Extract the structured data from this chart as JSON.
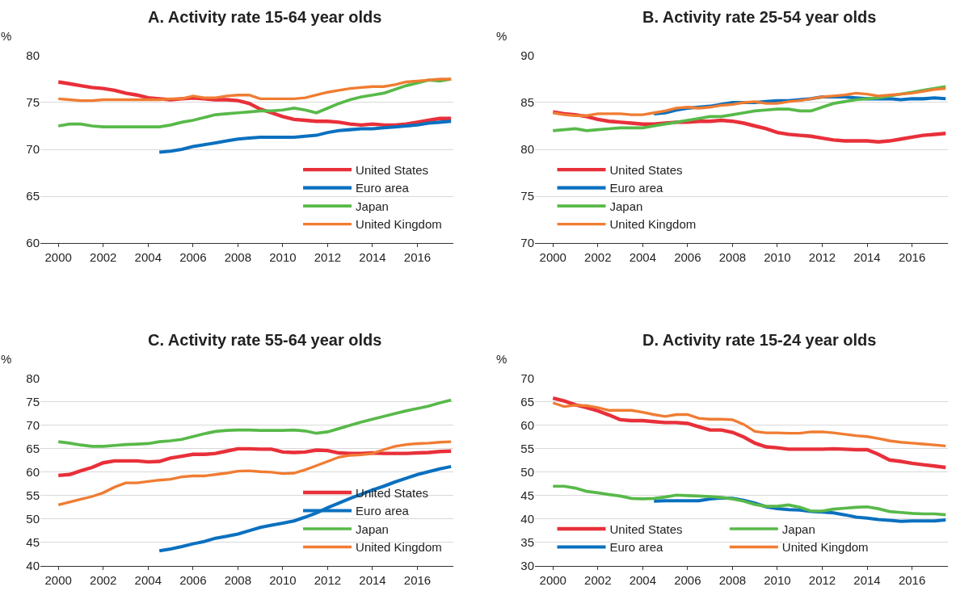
{
  "chart_data": [
    {
      "type": "line",
      "title": "A. Activity rate 15-64 year olds",
      "ylabel": "%",
      "x": [
        2000,
        2000.5,
        2001,
        2001.5,
        2002,
        2002.5,
        2003,
        2003.5,
        2004,
        2004.5,
        2005,
        2005.5,
        2006,
        2006.5,
        2007,
        2007.5,
        2008,
        2008.5,
        2009,
        2009.5,
        2010,
        2010.5,
        2011,
        2011.5,
        2012,
        2012.5,
        2013,
        2013.5,
        2014,
        2014.5,
        2015,
        2015.5,
        2016,
        2016.5,
        2017,
        2017.5
      ],
      "xlim": [
        1999.2,
        2017.6
      ],
      "xticks": [
        2000,
        2002,
        2004,
        2006,
        2008,
        2010,
        2012,
        2014,
        2016
      ],
      "ylim": [
        60,
        80
      ],
      "yticks": [
        60,
        65,
        70,
        75,
        80
      ],
      "grid": "y",
      "legend": "bottom right",
      "series": [
        {
          "name": "United States",
          "color": "#e8303a",
          "values": [
            77.2,
            77.0,
            76.8,
            76.6,
            76.5,
            76.3,
            76.0,
            75.8,
            75.5,
            75.4,
            75.3,
            75.4,
            75.5,
            75.4,
            75.3,
            75.3,
            75.2,
            74.9,
            74.3,
            73.9,
            73.5,
            73.2,
            73.1,
            73.0,
            73.0,
            72.9,
            72.7,
            72.6,
            72.7,
            72.6,
            72.6,
            72.7,
            72.9,
            73.1,
            73.3,
            73.3
          ]
        },
        {
          "name": "Euro area",
          "color": "#0a70bf",
          "values": [
            null,
            null,
            null,
            null,
            null,
            null,
            null,
            null,
            null,
            69.7,
            69.8,
            70.0,
            70.3,
            70.5,
            70.7,
            70.9,
            71.1,
            71.2,
            71.3,
            71.3,
            71.3,
            71.3,
            71.4,
            71.5,
            71.8,
            72.0,
            72.1,
            72.2,
            72.2,
            72.3,
            72.4,
            72.5,
            72.6,
            72.8,
            72.9,
            73.0
          ]
        },
        {
          "name": "Japan",
          "color": "#58b949",
          "values": [
            72.5,
            72.7,
            72.7,
            72.5,
            72.4,
            72.4,
            72.4,
            72.4,
            72.4,
            72.4,
            72.6,
            72.9,
            73.1,
            73.4,
            73.7,
            73.8,
            73.9,
            74.0,
            74.1,
            74.1,
            74.2,
            74.4,
            74.2,
            73.9,
            74.4,
            74.9,
            75.3,
            75.6,
            75.8,
            76.0,
            76.4,
            76.8,
            77.1,
            77.4,
            77.3,
            77.5
          ]
        },
        {
          "name": "United Kingdom",
          "color": "#f07c32",
          "values": [
            75.4,
            75.3,
            75.2,
            75.2,
            75.3,
            75.3,
            75.3,
            75.3,
            75.3,
            75.3,
            75.4,
            75.4,
            75.7,
            75.5,
            75.5,
            75.7,
            75.8,
            75.8,
            75.4,
            75.4,
            75.4,
            75.4,
            75.5,
            75.8,
            76.1,
            76.3,
            76.5,
            76.6,
            76.7,
            76.7,
            76.9,
            77.2,
            77.3,
            77.4,
            77.5,
            77.5
          ]
        }
      ]
    },
    {
      "type": "line",
      "title": "B. Activity rate 25-54 year olds",
      "ylabel": "%",
      "x": [
        2000,
        2000.5,
        2001,
        2001.5,
        2002,
        2002.5,
        2003,
        2003.5,
        2004,
        2004.5,
        2005,
        2005.5,
        2006,
        2006.5,
        2007,
        2007.5,
        2008,
        2008.5,
        2009,
        2009.5,
        2010,
        2010.5,
        2011,
        2011.5,
        2012,
        2012.5,
        2013,
        2013.5,
        2014,
        2014.5,
        2015,
        2015.5,
        2016,
        2016.5,
        2017,
        2017.5
      ],
      "xlim": [
        1999.2,
        2017.6
      ],
      "xticks": [
        2000,
        2002,
        2004,
        2006,
        2008,
        2010,
        2012,
        2014,
        2016
      ],
      "ylim": [
        70,
        90
      ],
      "yticks": [
        70,
        75,
        80,
        85,
        90
      ],
      "grid": "y",
      "legend": "bottom left",
      "series": [
        {
          "name": "United States",
          "color": "#e8303a",
          "values": [
            84.0,
            83.8,
            83.7,
            83.5,
            83.2,
            83.0,
            82.9,
            82.8,
            82.7,
            82.7,
            82.8,
            82.9,
            82.9,
            83.0,
            83.0,
            83.1,
            83.0,
            82.8,
            82.5,
            82.2,
            81.8,
            81.6,
            81.5,
            81.4,
            81.2,
            81.0,
            80.9,
            80.9,
            80.9,
            80.8,
            80.9,
            81.1,
            81.3,
            81.5,
            81.6,
            81.7
          ]
        },
        {
          "name": "Euro area",
          "color": "#0a70bf",
          "values": [
            null,
            null,
            null,
            null,
            null,
            null,
            null,
            null,
            null,
            83.8,
            83.9,
            84.2,
            84.4,
            84.5,
            84.6,
            84.8,
            85.0,
            85.0,
            85.0,
            85.1,
            85.2,
            85.2,
            85.3,
            85.4,
            85.6,
            85.6,
            85.6,
            85.5,
            85.4,
            85.4,
            85.4,
            85.3,
            85.4,
            85.4,
            85.5,
            85.4
          ]
        },
        {
          "name": "Japan",
          "color": "#58b949",
          "values": [
            82.0,
            82.1,
            82.2,
            82.0,
            82.1,
            82.2,
            82.3,
            82.3,
            82.3,
            82.5,
            82.7,
            82.9,
            83.1,
            83.3,
            83.5,
            83.5,
            83.7,
            83.9,
            84.1,
            84.2,
            84.3,
            84.3,
            84.1,
            84.1,
            84.5,
            84.9,
            85.1,
            85.3,
            85.4,
            85.5,
            85.7,
            85.9,
            86.1,
            86.3,
            86.5,
            86.7
          ]
        },
        {
          "name": "United Kingdom",
          "color": "#f07c32",
          "values": [
            83.9,
            83.7,
            83.6,
            83.6,
            83.8,
            83.8,
            83.8,
            83.7,
            83.7,
            83.9,
            84.1,
            84.4,
            84.5,
            84.4,
            84.5,
            84.7,
            84.8,
            85.0,
            85.1,
            84.9,
            84.9,
            85.1,
            85.2,
            85.4,
            85.6,
            85.7,
            85.8,
            86.0,
            85.9,
            85.7,
            85.8,
            85.9,
            86.0,
            86.2,
            86.4,
            86.5
          ]
        }
      ]
    },
    {
      "type": "line",
      "title": "C. Activity rate 55-64 year olds",
      "ylabel": "%",
      "x": [
        2000,
        2000.5,
        2001,
        2001.5,
        2002,
        2002.5,
        2003,
        2003.5,
        2004,
        2004.5,
        2005,
        2005.5,
        2006,
        2006.5,
        2007,
        2007.5,
        2008,
        2008.5,
        2009,
        2009.5,
        2010,
        2010.5,
        2011,
        2011.5,
        2012,
        2012.5,
        2013,
        2013.5,
        2014,
        2014.5,
        2015,
        2015.5,
        2016,
        2016.5,
        2017,
        2017.5
      ],
      "xlim": [
        1999.2,
        2017.6
      ],
      "xticks": [
        2000,
        2002,
        2004,
        2006,
        2008,
        2010,
        2012,
        2014,
        2016
      ],
      "ylim": [
        40,
        80
      ],
      "yticks": [
        40,
        45,
        50,
        55,
        60,
        65,
        70,
        75,
        80
      ],
      "grid": "y",
      "legend": "bottom right",
      "series": [
        {
          "name": "United States",
          "color": "#e8303a",
          "values": [
            59.3,
            59.5,
            60.3,
            61.0,
            62.0,
            62.4,
            62.4,
            62.4,
            62.2,
            62.3,
            63.0,
            63.4,
            63.8,
            63.8,
            64.0,
            64.5,
            65.0,
            65.0,
            64.9,
            64.9,
            64.3,
            64.2,
            64.3,
            64.7,
            64.6,
            64.1,
            64.0,
            64.0,
            64.1,
            64.0,
            64.0,
            64.0,
            64.1,
            64.2,
            64.4,
            64.5
          ]
        },
        {
          "name": "Euro area",
          "color": "#0a70bf",
          "values": [
            null,
            null,
            null,
            null,
            null,
            null,
            null,
            null,
            null,
            43.2,
            43.6,
            44.1,
            44.7,
            45.2,
            45.9,
            46.3,
            46.8,
            47.5,
            48.2,
            48.7,
            49.1,
            49.6,
            50.4,
            51.3,
            52.4,
            53.4,
            54.4,
            55.3,
            56.2,
            57.0,
            57.9,
            58.7,
            59.5,
            60.1,
            60.7,
            61.2
          ]
        },
        {
          "name": "Japan",
          "color": "#58b949",
          "values": [
            66.5,
            66.2,
            65.8,
            65.5,
            65.5,
            65.7,
            65.9,
            66.0,
            66.1,
            66.5,
            66.7,
            67.0,
            67.6,
            68.2,
            68.7,
            68.9,
            69.0,
            69.0,
            68.9,
            68.9,
            68.9,
            69.0,
            68.8,
            68.3,
            68.6,
            69.3,
            70.0,
            70.7,
            71.3,
            71.9,
            72.5,
            73.1,
            73.6,
            74.1,
            74.8,
            75.4
          ]
        },
        {
          "name": "United Kingdom",
          "color": "#f07c32",
          "values": [
            53.0,
            53.6,
            54.2,
            54.8,
            55.6,
            56.8,
            57.7,
            57.7,
            58.0,
            58.3,
            58.5,
            59.0,
            59.2,
            59.2,
            59.5,
            59.8,
            60.2,
            60.3,
            60.1,
            60.0,
            59.7,
            59.8,
            60.5,
            61.4,
            62.3,
            63.2,
            63.6,
            63.7,
            64.0,
            64.8,
            65.5,
            65.9,
            66.1,
            66.2,
            66.4,
            66.5
          ]
        }
      ]
    },
    {
      "type": "line",
      "title": "D. Activity rate 15-24 year olds",
      "ylabel": "%",
      "x": [
        2000,
        2000.5,
        2001,
        2001.5,
        2002,
        2002.5,
        2003,
        2003.5,
        2004,
        2004.5,
        2005,
        2005.5,
        2006,
        2006.5,
        2007,
        2007.5,
        2008,
        2008.5,
        2009,
        2009.5,
        2010,
        2010.5,
        2011,
        2011.5,
        2012,
        2012.5,
        2013,
        2013.5,
        2014,
        2014.5,
        2015,
        2015.5,
        2016,
        2016.5,
        2017,
        2017.5
      ],
      "xlim": [
        1999.2,
        2017.6
      ],
      "xticks": [
        2000,
        2002,
        2004,
        2006,
        2008,
        2010,
        2012,
        2014,
        2016
      ],
      "ylim": [
        30,
        70
      ],
      "yticks": [
        30,
        35,
        40,
        45,
        50,
        55,
        60,
        65,
        70
      ],
      "grid": "y",
      "legend": "bottom left",
      "series": [
        {
          "name": "United States",
          "color": "#e8303a",
          "values": [
            65.8,
            65.2,
            64.4,
            63.8,
            63.1,
            62.2,
            61.2,
            61.0,
            61.0,
            60.8,
            60.6,
            60.6,
            60.4,
            59.7,
            59.0,
            59.0,
            58.5,
            57.5,
            56.2,
            55.4,
            55.2,
            54.9,
            54.9,
            54.9,
            54.9,
            55.0,
            54.9,
            54.8,
            54.8,
            53.8,
            52.6,
            52.3,
            51.9,
            51.6,
            51.3,
            51.0
          ]
        },
        {
          "name": "Euro area",
          "color": "#0a70bf",
          "values": [
            null,
            null,
            null,
            null,
            null,
            null,
            null,
            null,
            null,
            43.8,
            43.9,
            43.9,
            43.9,
            43.9,
            44.3,
            44.5,
            44.4,
            44.0,
            43.4,
            42.6,
            42.2,
            42.0,
            41.9,
            41.6,
            41.5,
            41.3,
            40.9,
            40.4,
            40.2,
            39.9,
            39.7,
            39.5,
            39.6,
            39.6,
            39.6,
            39.8
          ]
        },
        {
          "name": "Japan",
          "color": "#58b949",
          "values": [
            47.0,
            47.0,
            46.6,
            45.9,
            45.6,
            45.2,
            44.9,
            44.4,
            44.3,
            44.4,
            44.7,
            45.1,
            45.0,
            44.9,
            44.8,
            44.6,
            44.3,
            43.8,
            43.1,
            42.7,
            42.7,
            43.0,
            42.5,
            41.7,
            41.7,
            42.1,
            42.3,
            42.5,
            42.6,
            42.2,
            41.6,
            41.4,
            41.2,
            41.1,
            41.1,
            40.9
          ]
        },
        {
          "name": "United Kingdom",
          "color": "#f07c32",
          "values": [
            64.8,
            64.0,
            64.3,
            64.2,
            63.8,
            63.2,
            63.2,
            63.2,
            62.8,
            62.3,
            61.9,
            62.3,
            62.3,
            61.5,
            61.3,
            61.3,
            61.2,
            60.2,
            58.7,
            58.4,
            58.4,
            58.3,
            58.3,
            58.6,
            58.6,
            58.4,
            58.1,
            57.8,
            57.6,
            57.2,
            56.7,
            56.4,
            56.2,
            56.0,
            55.8,
            55.6
          ]
        }
      ]
    }
  ]
}
